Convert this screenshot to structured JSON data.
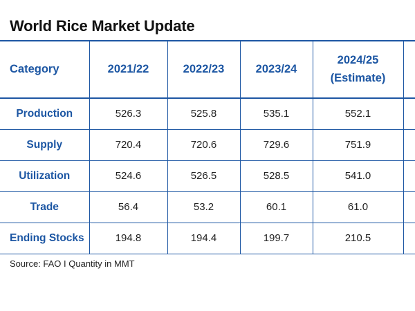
{
  "title": "World Rice Market Update",
  "table": {
    "headers": [
      "Category",
      "2021/22",
      "2022/23",
      "2023/24",
      "2024/25",
      "(Estimate)",
      "("
    ],
    "rows": [
      {
        "category": "Production",
        "values": [
          "526.3",
          "525.8",
          "535.1",
          "552.1"
        ]
      },
      {
        "category": "Supply",
        "values": [
          "720.4",
          "720.6",
          "729.6",
          "751.9"
        ]
      },
      {
        "category": "Utilization",
        "values": [
          "524.6",
          "526.5",
          "528.5",
          "541.0"
        ]
      },
      {
        "category": "Trade",
        "values": [
          "56.4",
          "53.2",
          "60.1",
          "61.0"
        ]
      },
      {
        "category": "Ending Stocks",
        "values": [
          "194.8",
          "194.4",
          "199.7",
          "210.5"
        ]
      }
    ]
  },
  "source": "Source: FAO I Quantity in MMT",
  "colors": {
    "accent": "#1c56a3",
    "text": "#222222"
  }
}
